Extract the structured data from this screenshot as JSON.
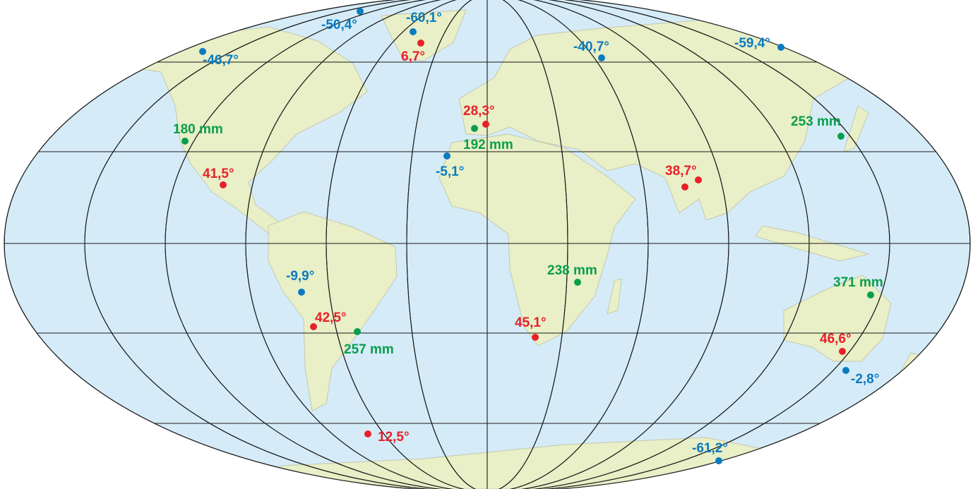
{
  "colors": {
    "ocean": "#d5ecf8",
    "land": "#e9efc6",
    "border": "#c5c8b0",
    "graticule": "#1a1a1a",
    "min_temp": "#0a7bbf",
    "max_temp": "#e8202a",
    "precipitation": "#0a9e4c"
  },
  "markers": [
    {
      "kind": "min_temp",
      "label": "-50,4°"
    },
    {
      "kind": "min_temp",
      "label": "-60,1°"
    },
    {
      "kind": "max_temp",
      "label": "6,7°"
    },
    {
      "kind": "min_temp",
      "label": "-46,7°"
    },
    {
      "kind": "min_temp",
      "label": "-40,7°"
    },
    {
      "kind": "min_temp",
      "label": "-59,4°"
    },
    {
      "kind": "max_temp",
      "label": "28,3°"
    },
    {
      "kind": "precipitation",
      "label": "192 mm"
    },
    {
      "kind": "precipitation",
      "label": "180 mm"
    },
    {
      "kind": "precipitation",
      "label": "253 mm"
    },
    {
      "kind": "min_temp",
      "label": "-5,1°"
    },
    {
      "kind": "max_temp",
      "label": "41,5°"
    },
    {
      "kind": "max_temp",
      "label": "38,7°"
    },
    {
      "kind": "min_temp",
      "label": "-9,9°"
    },
    {
      "kind": "precipitation",
      "label": "238 mm"
    },
    {
      "kind": "precipitation",
      "label": "371 mm"
    },
    {
      "kind": "max_temp",
      "label": "42,5°"
    },
    {
      "kind": "precipitation",
      "label": "257 mm"
    },
    {
      "kind": "max_temp",
      "label": "45,1°"
    },
    {
      "kind": "max_temp",
      "label": "46,6°"
    },
    {
      "kind": "min_temp",
      "label": "-2,8°"
    },
    {
      "kind": "max_temp",
      "label": "12,5°"
    },
    {
      "kind": "min_temp",
      "label": "-61,2°"
    }
  ]
}
